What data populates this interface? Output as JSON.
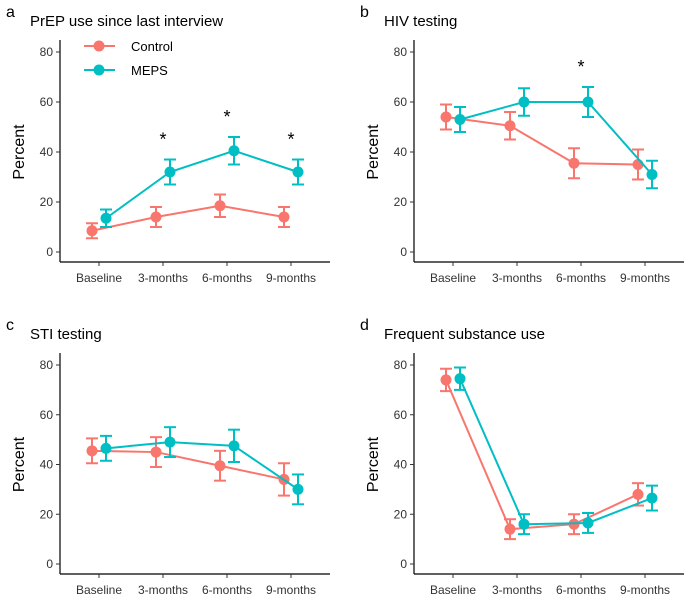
{
  "chart_data": [
    {
      "type": "line",
      "letter": "a",
      "title": "PrEP use since last interview",
      "ylabel": "Percent",
      "xlabel": "",
      "ylim": [
        0,
        80
      ],
      "yticks": [
        0,
        20,
        40,
        60,
        80
      ],
      "categories": [
        "Baseline",
        "3-months",
        "6-months",
        "9-months"
      ],
      "series": [
        {
          "name": "Control",
          "values": [
            8.5,
            14,
            18.5,
            14
          ],
          "errors": [
            3,
            4,
            4.5,
            4
          ]
        },
        {
          "name": "MEPS",
          "values": [
            13.5,
            32,
            40.5,
            32
          ],
          "errors": [
            3.5,
            5,
            5.5,
            5
          ]
        }
      ],
      "significance": [
        "",
        "*",
        "*",
        "*"
      ],
      "legend": "top-left"
    },
    {
      "type": "line",
      "letter": "b",
      "title": "HIV testing",
      "ylabel": "Percent",
      "xlabel": "",
      "ylim": [
        0,
        80
      ],
      "yticks": [
        0,
        20,
        40,
        60,
        80
      ],
      "categories": [
        "Baseline",
        "3-months",
        "6-months",
        "9-months"
      ],
      "series": [
        {
          "name": "Control",
          "values": [
            54,
            50.5,
            35.5,
            35
          ],
          "errors": [
            5,
            5.5,
            6,
            6
          ]
        },
        {
          "name": "MEPS",
          "values": [
            53,
            60,
            60,
            31
          ],
          "errors": [
            5,
            5.5,
            6,
            5.5
          ]
        }
      ],
      "significance": [
        "",
        "",
        "*",
        ""
      ]
    },
    {
      "type": "line",
      "letter": "c",
      "title": "STI testing",
      "ylabel": "Percent",
      "xlabel": "",
      "ylim": [
        0,
        80
      ],
      "yticks": [
        0,
        20,
        40,
        60,
        80
      ],
      "categories": [
        "Baseline",
        "3-months",
        "6-months",
        "9-months"
      ],
      "series": [
        {
          "name": "Control",
          "values": [
            45.5,
            45,
            39.5,
            34
          ],
          "errors": [
            5,
            6,
            6,
            6.5
          ]
        },
        {
          "name": "MEPS",
          "values": [
            46.5,
            49,
            47.5,
            30
          ],
          "errors": [
            5,
            6,
            6.5,
            6
          ]
        }
      ],
      "significance": [
        "",
        "",
        "",
        ""
      ]
    },
    {
      "type": "line",
      "letter": "d",
      "title": "Frequent substance use",
      "ylabel": "Percent",
      "xlabel": "",
      "ylim": [
        0,
        80
      ],
      "yticks": [
        0,
        20,
        40,
        60,
        80
      ],
      "categories": [
        "Baseline",
        "3-months",
        "6-months",
        "9-months"
      ],
      "series": [
        {
          "name": "Control",
          "values": [
            74,
            14,
            16,
            28
          ],
          "errors": [
            4.5,
            4,
            4,
            4.5
          ]
        },
        {
          "name": "MEPS",
          "values": [
            74.5,
            16,
            16.5,
            26.5
          ],
          "errors": [
            4.5,
            4,
            4,
            5
          ]
        }
      ],
      "significance": [
        "",
        "",
        "",
        ""
      ]
    }
  ],
  "colors": {
    "Control": "#F8766D",
    "MEPS": "#00BFC4"
  }
}
